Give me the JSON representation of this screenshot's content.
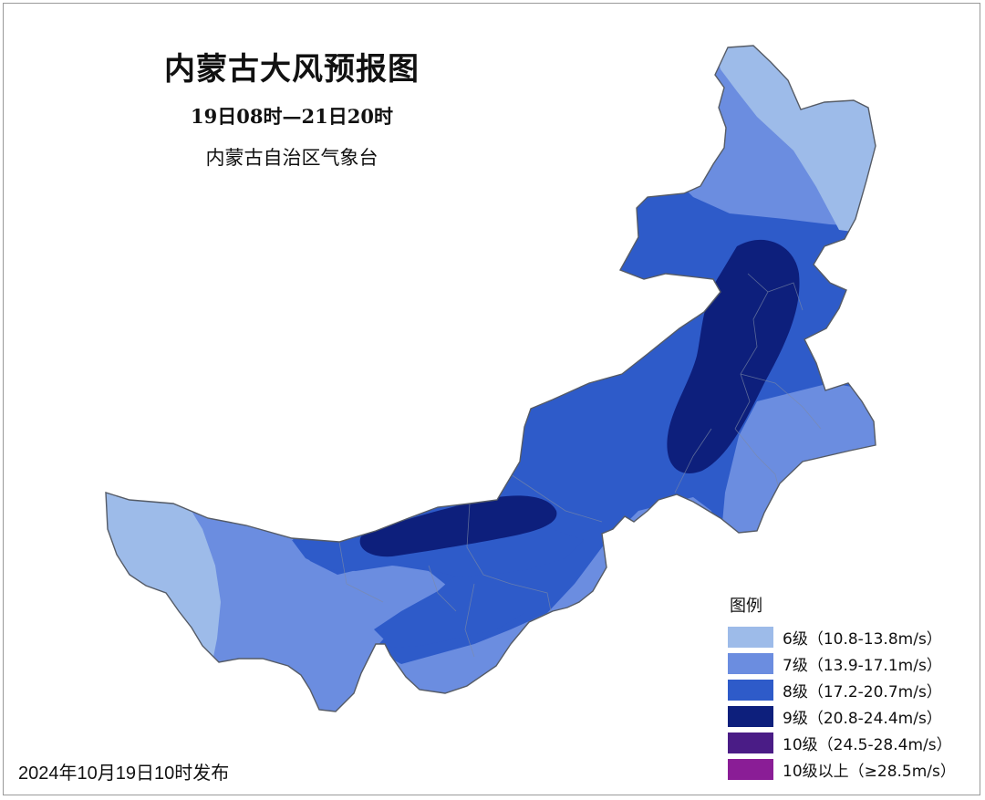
{
  "map": {
    "title": "内蒙古大风预报图",
    "period": "19日08时—21日20时",
    "issuer": "内蒙古自治区气象台",
    "issued": "2024年10月19日10时发布"
  },
  "legend": {
    "title": "图例",
    "items": [
      {
        "label": "6级（10.8-13.8m/s）",
        "color": "#9dbbe9"
      },
      {
        "label": "7级（13.9-17.1m/s）",
        "color": "#6b8de0"
      },
      {
        "label": "8级（17.2-20.7m/s）",
        "color": "#2e5bc9"
      },
      {
        "label": "9级（20.8-24.4m/s）",
        "color": "#0d1f7c"
      },
      {
        "label": "10级（24.5-28.4m/s）",
        "color": "#4a1c86"
      },
      {
        "label": "10级以上（≥28.5m/s）",
        "color": "#8a1d96"
      }
    ]
  }
}
